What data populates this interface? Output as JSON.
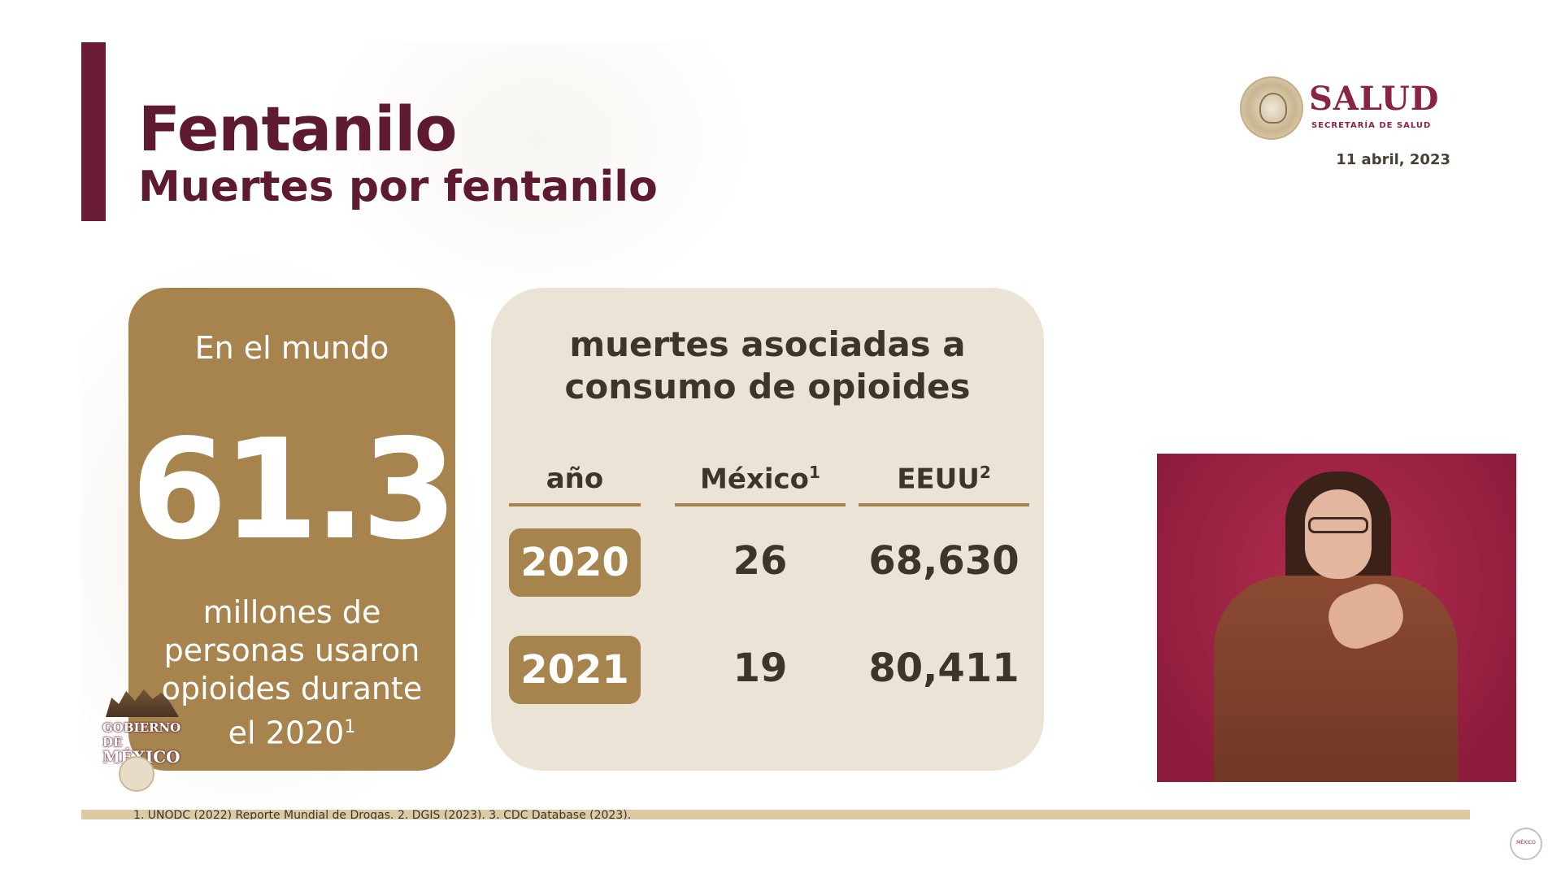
{
  "header": {
    "title": "Fentanilo",
    "subtitle": "Muertes por fentanilo",
    "date": "11 abril, 2023"
  },
  "logo": {
    "word": "SALUD",
    "sub": "SECRETARÍA DE SALUD",
    "seal_icon": "coat-of-arms-icon"
  },
  "world_card": {
    "label": "En el mundo",
    "value": "61.3",
    "description": "millones de personas usaron opioides durante el 2020",
    "footnote": "1"
  },
  "deaths_card": {
    "heading_line1": "muertes asociadas a",
    "heading_line2": "consumo de opioides",
    "columns": [
      {
        "label": "año",
        "sup": ""
      },
      {
        "label": "México",
        "sup": "1"
      },
      {
        "label": "EEUU",
        "sup": "2"
      }
    ],
    "rows": [
      {
        "year": "2020",
        "mexico": "26",
        "eeuu": "68,630"
      },
      {
        "year": "2021",
        "mexico": "19",
        "eeuu": "80,411"
      }
    ]
  },
  "gov_logo": {
    "line1": "GOBIERNO DE",
    "line2": "MÉXICO"
  },
  "footer": {
    "sources": "1. UNODC (2022) Reporte Mundial de Drogas. 2. DGIS (2023). 3. CDC Database (2023)."
  },
  "corner_logo": {
    "text": "MÉXICO"
  },
  "colors": {
    "accent": "#6b1d35",
    "gold": "#a7834e",
    "cream": "#ebe4d6",
    "video_bg": "#a8264a"
  }
}
